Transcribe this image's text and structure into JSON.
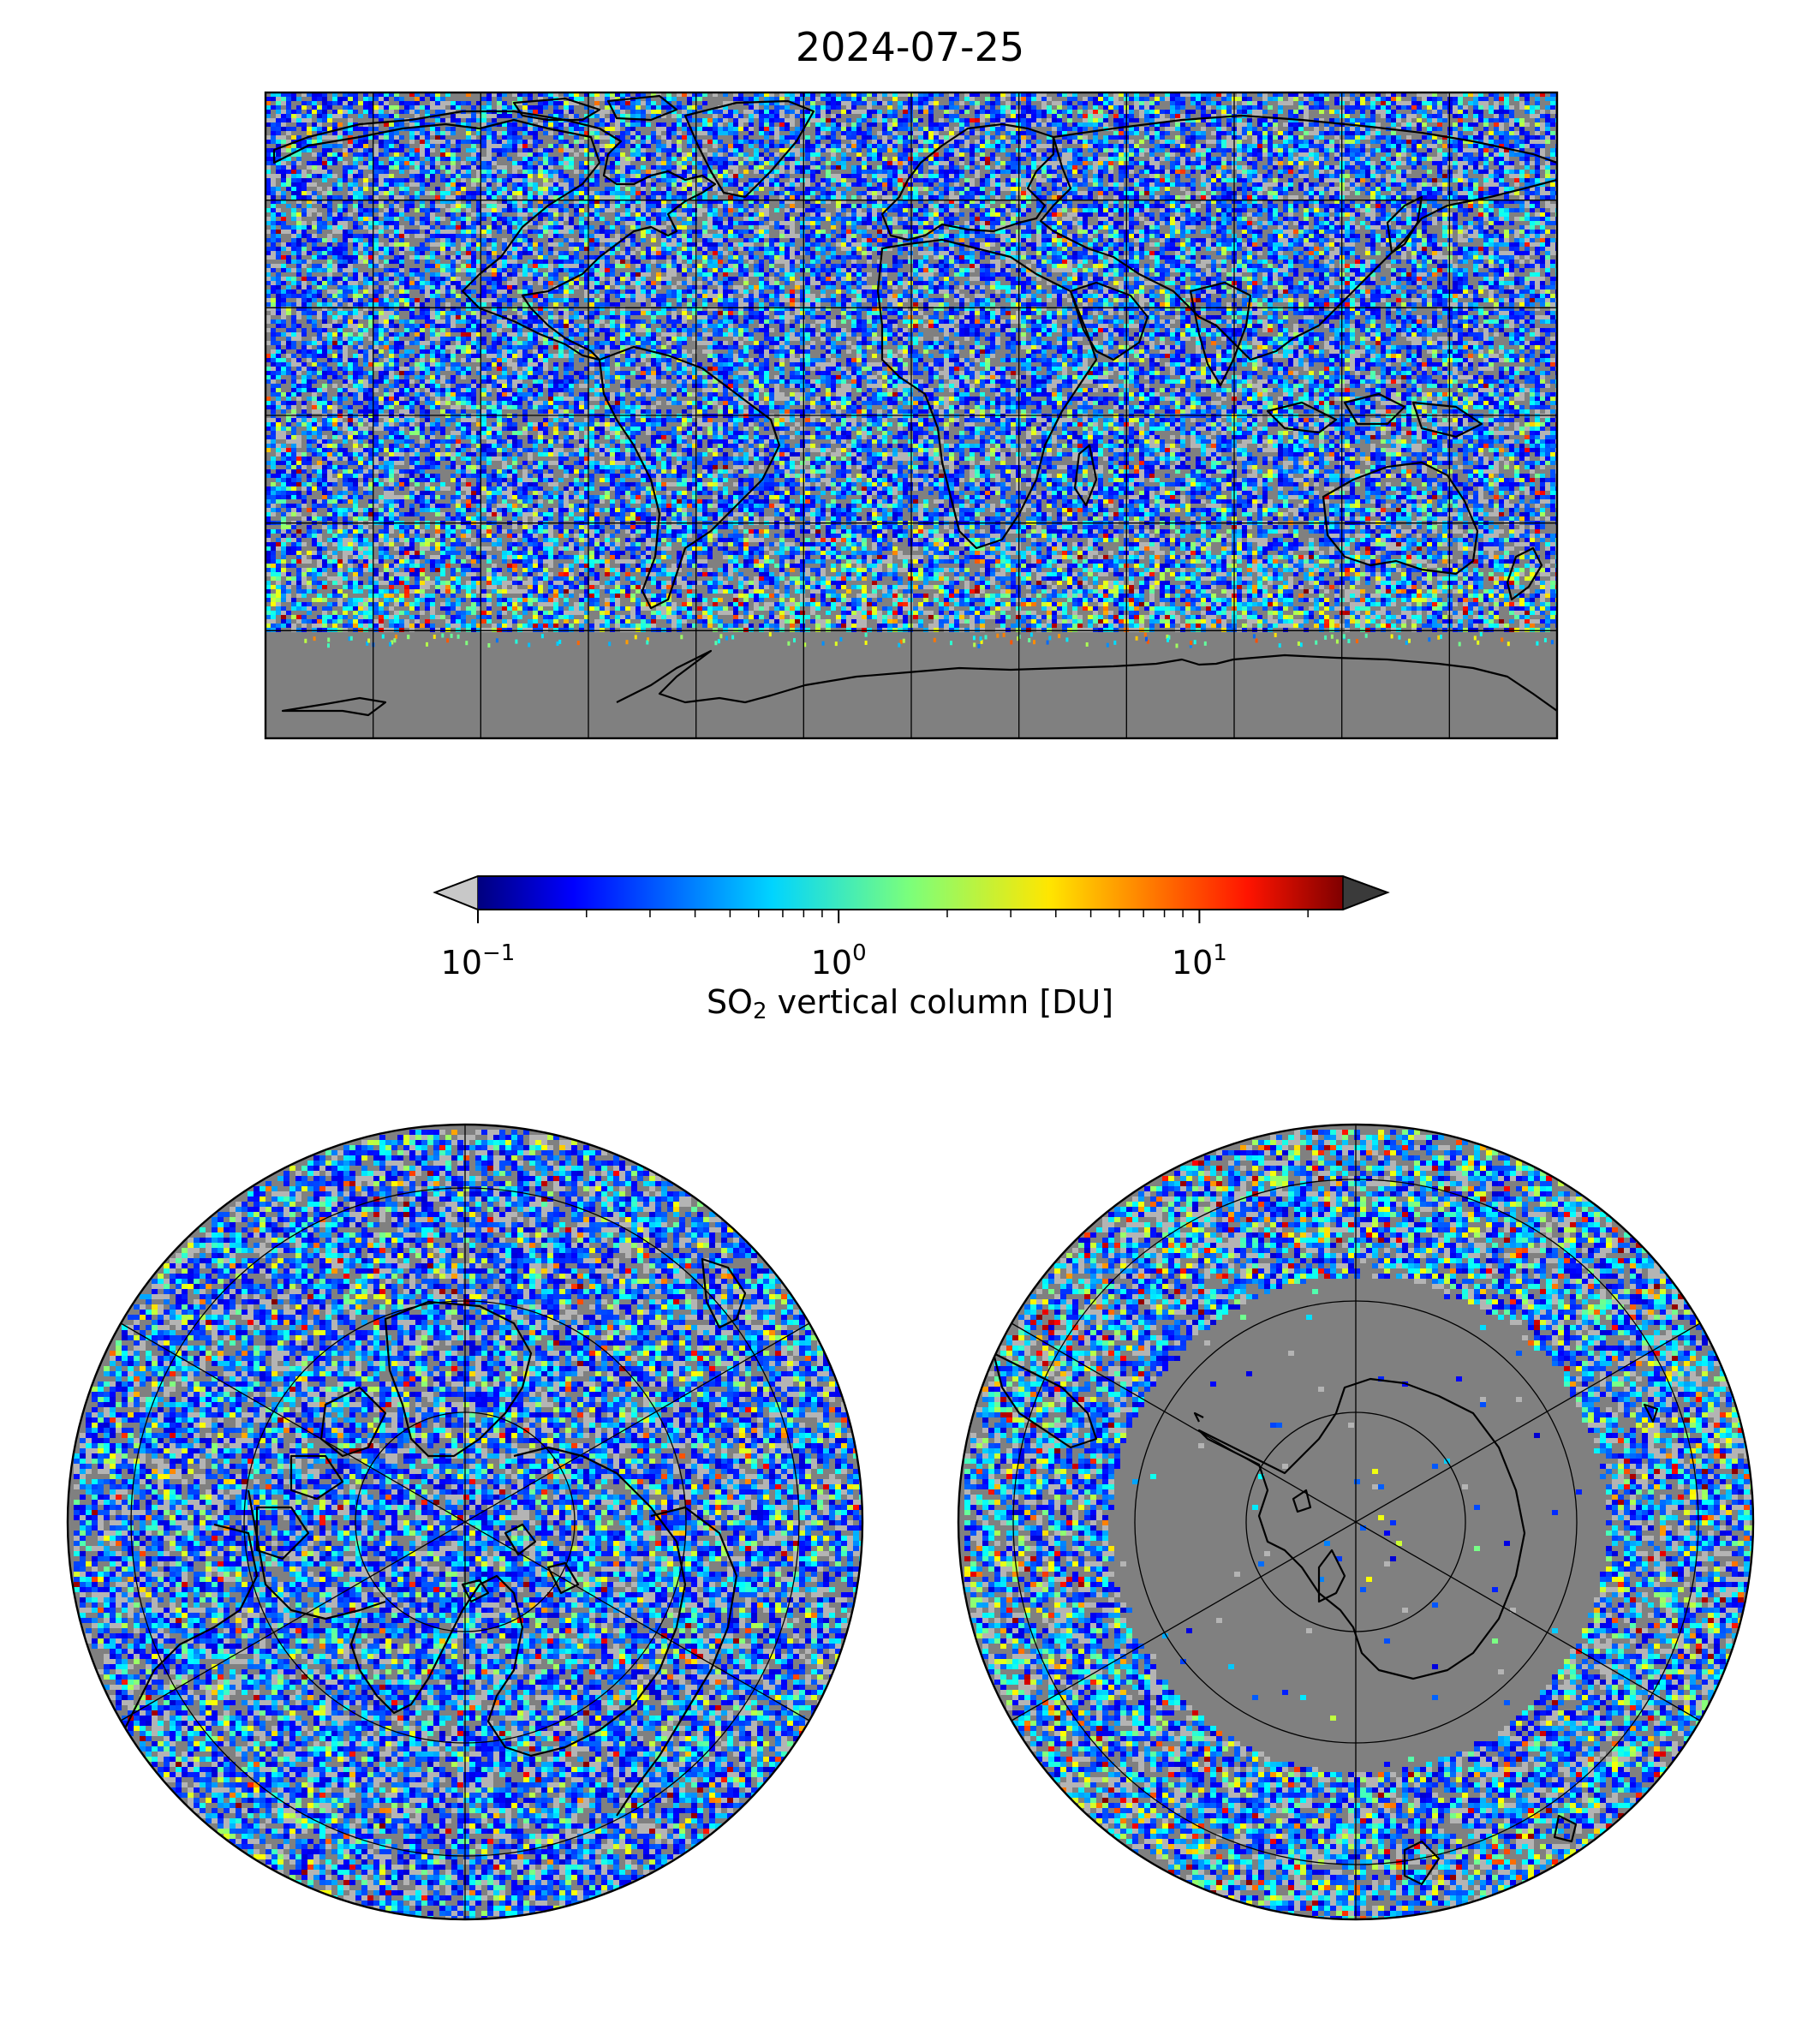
{
  "title": "2024-07-25",
  "colorbar": {
    "label_prefix": "SO",
    "label_subscript": "2",
    "label_suffix": " vertical column [DU]",
    "scale": "log",
    "range": [
      0.1,
      25
    ],
    "extend": "both",
    "colormap": "jet",
    "under_color": "#c8c8c8",
    "over_color": "#3a3a3a",
    "ticks": [
      {
        "base": "10",
        "exp": "−1",
        "value": 0.1
      },
      {
        "base": "10",
        "exp": "0",
        "value": 1
      },
      {
        "base": "10",
        "exp": "1",
        "value": 10
      }
    ]
  },
  "map_colors": {
    "no_data": "#808080",
    "below_range": "#b4b4b4",
    "coastline": "#000000",
    "gridline": "#000000"
  },
  "panels": [
    {
      "name": "global-map",
      "projection": "plate-carree"
    },
    {
      "name": "north-polar-map",
      "projection": "north-polar-stereographic"
    },
    {
      "name": "south-polar-map",
      "projection": "south-polar-stereographic"
    }
  ]
}
